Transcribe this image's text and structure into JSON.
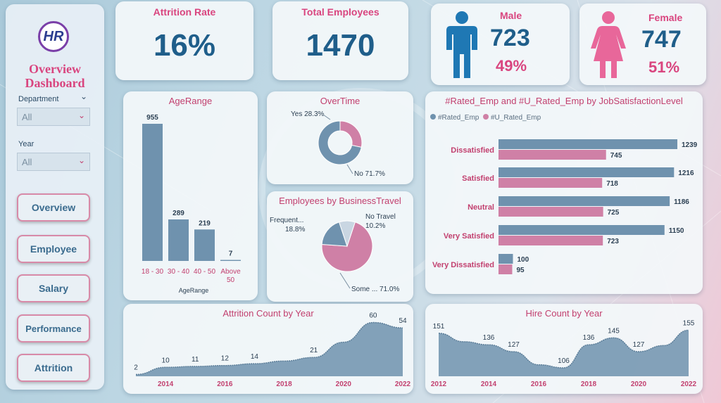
{
  "logo": {
    "text": "HR"
  },
  "sidebar": {
    "title_line1": "Overview",
    "title_line2": "Dashboard",
    "department": {
      "label": "Department",
      "value": "All"
    },
    "year": {
      "label": "Year",
      "value": "All"
    },
    "nav": [
      {
        "label": "Overview"
      },
      {
        "label": "Employee"
      },
      {
        "label": "Salary"
      },
      {
        "label": "Performance"
      },
      {
        "label": "Attrition"
      }
    ]
  },
  "kpis": {
    "attrition": {
      "title": "Attrition Rate",
      "value": "16%"
    },
    "total": {
      "title": "Total Employees",
      "value": "1470"
    },
    "male": {
      "title": "Male",
      "value": "723",
      "pct": "49%",
      "icon": "male-person-icon",
      "color": "#1f78b4"
    },
    "female": {
      "title": "Female",
      "value": "747",
      "pct": "51%",
      "icon": "female-person-icon",
      "color": "#e8679a"
    }
  },
  "colors": {
    "blue": "#6f92ae",
    "pink": "#cf80a6",
    "title": "#c2406f"
  },
  "chart_data": [
    {
      "id": "age",
      "type": "bar",
      "title": "AgeRange",
      "xlabel": "AgeRange",
      "categories": [
        "18 - 30",
        "30 - 40",
        "40 - 50",
        "Above 50"
      ],
      "values": [
        955,
        289,
        219,
        7
      ],
      "ylim": [
        0,
        1000
      ]
    },
    {
      "id": "overtime",
      "type": "pie",
      "title": "OverTime",
      "slices": [
        {
          "label": "Yes 28.3%",
          "value": 28.3
        },
        {
          "label": "No 71.7%",
          "value": 71.7
        }
      ]
    },
    {
      "id": "travel",
      "type": "pie",
      "title": "Employees by BusinessTravel",
      "slices": [
        {
          "label": "Some ... 71.0%",
          "value": 71.0
        },
        {
          "label": "Frequent... 18.8%",
          "value": 18.8
        },
        {
          "label": "No Travel 10.2%",
          "value": 10.2
        }
      ]
    },
    {
      "id": "satisfaction",
      "type": "bar",
      "title": "#Rated_Emp and #U_Rated_Emp by JobSatisfactionLevel",
      "categories": [
        "Dissatisfied",
        "Satisfied",
        "Neutral",
        "Very Satisfied",
        "Very Dissatisfied"
      ],
      "series": [
        {
          "name": "#Rated_Emp",
          "values": [
            1239,
            1216,
            1186,
            1150,
            100
          ]
        },
        {
          "name": "#U_Rated_Emp",
          "values": [
            745,
            718,
            725,
            723,
            95
          ]
        }
      ],
      "xlim": [
        0,
        1300
      ]
    },
    {
      "id": "attrition",
      "type": "area",
      "title": "Attrition Count by Year",
      "x": [
        2013,
        2014,
        2015,
        2016,
        2017,
        2018,
        2019,
        2020,
        2021,
        2022
      ],
      "values": [
        2,
        10,
        11,
        12,
        14,
        17,
        21,
        38,
        60,
        54
      ],
      "labels": [
        {
          "year": 2013,
          "text": "2"
        },
        {
          "year": 2014,
          "text": "10"
        },
        {
          "year": 2015,
          "text": "11"
        },
        {
          "year": 2016,
          "text": "12"
        },
        {
          "year": 2017,
          "text": "14"
        },
        {
          "year": 2019,
          "text": "21"
        },
        {
          "year": 2021,
          "text": "60"
        },
        {
          "year": 2022,
          "text": "54"
        }
      ],
      "ticks": [
        2014,
        2016,
        2018,
        2020,
        2022
      ],
      "ylim": [
        0,
        62
      ]
    },
    {
      "id": "hire",
      "type": "area",
      "title": "Hire Count by Year",
      "x": [
        2012,
        2013,
        2014,
        2015,
        2016,
        2017,
        2018,
        2019,
        2020,
        2021,
        2022
      ],
      "values": [
        151,
        140,
        136,
        127,
        110,
        106,
        136,
        145,
        127,
        135,
        155
      ],
      "labels": [
        {
          "year": 2012,
          "text": "151"
        },
        {
          "year": 2014,
          "text": "136"
        },
        {
          "year": 2015,
          "text": "127"
        },
        {
          "year": 2017,
          "text": "106"
        },
        {
          "year": 2018,
          "text": "136"
        },
        {
          "year": 2019,
          "text": "145"
        },
        {
          "year": 2020,
          "text": "127"
        },
        {
          "year": 2022,
          "text": "155"
        }
      ],
      "ticks": [
        2012,
        2014,
        2016,
        2018,
        2020,
        2022
      ],
      "ylim": [
        95,
        160
      ]
    }
  ]
}
